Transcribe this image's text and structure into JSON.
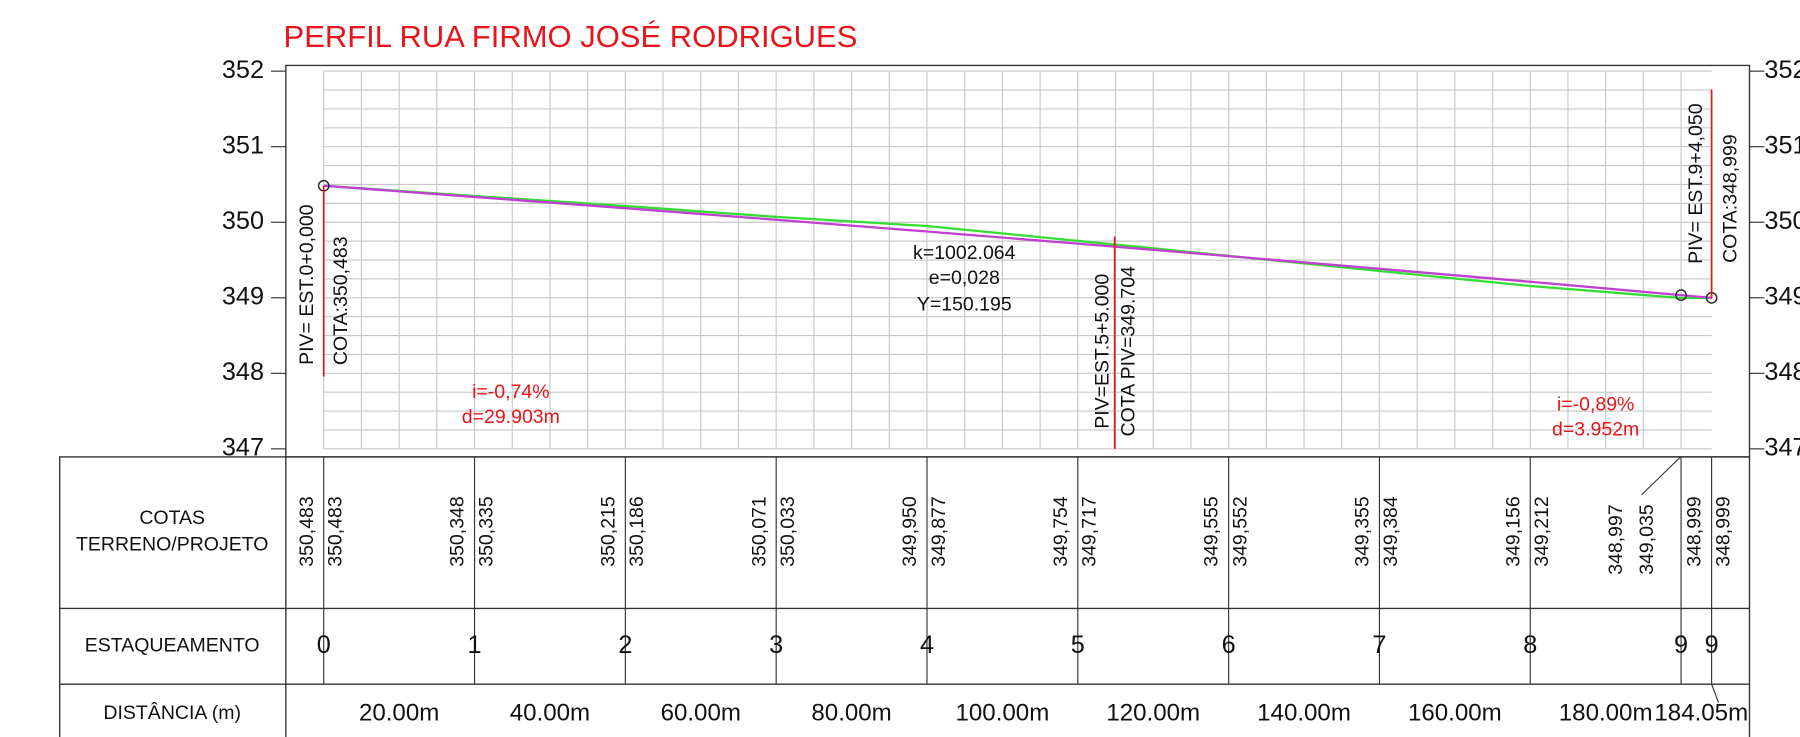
{
  "chart_data": {
    "type": "line",
    "title": "PERFIL RUA FIRMO JOSÉ RODRIGUES",
    "x": [
      0,
      20,
      40,
      60,
      80,
      100,
      120,
      140,
      160,
      180,
      184.05
    ],
    "xlim": [
      0,
      184.05
    ],
    "ylim": [
      347,
      352
    ],
    "yticks": [
      347,
      348,
      349,
      350,
      351,
      352
    ],
    "grid": true,
    "series": [
      {
        "name": "TERRENO",
        "color": "#33dd33",
        "values": [
          350.483,
          350.348,
          350.215,
          350.071,
          349.95,
          349.754,
          349.555,
          349.355,
          349.156,
          348.997,
          348.999
        ],
        "value_labels": [
          "350,483",
          "350,348",
          "350,215",
          "350,071",
          "349,950",
          "349,754",
          "349,555",
          "349,355",
          "349,156",
          "348,997",
          "348,999"
        ]
      },
      {
        "name": "PROJETO",
        "color": "#c040d0",
        "values": [
          350.483,
          350.335,
          350.186,
          350.033,
          349.877,
          349.717,
          349.552,
          349.384,
          349.212,
          349.035,
          348.999
        ],
        "value_labels": [
          "350,483",
          "350,335",
          "350,186",
          "350,033",
          "349,877",
          "349,717",
          "349,552",
          "349,384",
          "349,212",
          "349,035",
          "348,999"
        ]
      }
    ],
    "annotations": {
      "piv_start": [
        "PIV= EST.0+0,000",
        "COTA:350,483"
      ],
      "slope_start": [
        "i=-0,74%",
        "d=29.903m"
      ],
      "curve": [
        "k=1002.064",
        "e=0,028",
        "Y=150.195"
      ],
      "piv_mid": [
        "PIV=EST.5+5.000",
        "COTA PIV=349.704"
      ],
      "slope_end": [
        "i=-0,89%",
        "d=3.952m"
      ],
      "piv_end": [
        "PIV= EST.9+4,050",
        "COTA:348,999"
      ]
    }
  },
  "table": {
    "row_labels": [
      "COTAS",
      "TERRENO/PROJETO",
      "ESTAQUEAMENTO",
      "DISTÂNCIA (m)"
    ],
    "stations": [
      "0",
      "1",
      "2",
      "3",
      "4",
      "5",
      "6",
      "7",
      "8",
      "9",
      "9"
    ],
    "distances": [
      "20.00m",
      "40.00m",
      "60.00m",
      "80.00m",
      "100.00m",
      "120.00m",
      "140.00m",
      "160.00m",
      "180.00m",
      "184.05m"
    ]
  }
}
